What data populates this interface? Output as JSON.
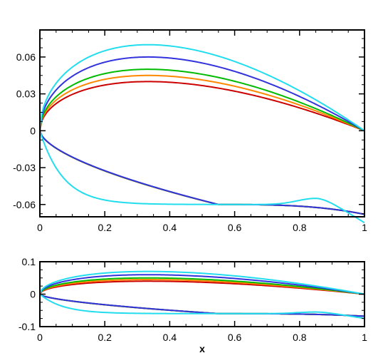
{
  "colors": {
    "red": "#cc0000",
    "orange": "#ff8800",
    "green": "#00bb00",
    "blue": "#3333dd",
    "cyan": "#22ddee",
    "frame": "#000000"
  },
  "chart_data": [
    {
      "type": "line",
      "title": "",
      "xlabel": "",
      "ylabel": "",
      "xlim": [
        0,
        1
      ],
      "ylim": [
        -0.07,
        0.082
      ],
      "x_ticks": [
        "0",
        "0.2",
        "0.4",
        "0.6",
        "0.8",
        "1"
      ],
      "y_ticks": [
        "-0.06",
        "-0.03",
        "0",
        "0.03",
        "0.06"
      ],
      "grid": false,
      "series": [
        {
          "color": "#cc0000",
          "upper_max": 0.04,
          "lower_min": -0.06
        },
        {
          "color": "#ff8800",
          "upper_max": 0.045,
          "lower_min": -0.06
        },
        {
          "color": "#00bb00",
          "upper_max": 0.05,
          "lower_min": -0.06
        },
        {
          "color": "#3333dd",
          "upper_max": 0.06,
          "lower_min": -0.06
        },
        {
          "color": "#22ddee",
          "upper_max": 0.07,
          "lower_min": -0.06,
          "lower_bump_x": 0.85,
          "lower_bump_y": -0.055,
          "lower_end_y": -0.07
        }
      ]
    },
    {
      "type": "line",
      "title": "",
      "xlabel": "x",
      "ylabel": "",
      "xlim": [
        0,
        1
      ],
      "ylim": [
        -0.1,
        0.1
      ],
      "x_ticks": [
        "0",
        "0.2",
        "0.4",
        "0.6",
        "0.8",
        "1"
      ],
      "y_ticks": [
        "-0.1",
        "0",
        "0.1"
      ],
      "grid": false,
      "series": [
        {
          "color": "#cc0000",
          "upper_max": 0.04,
          "lower_min": -0.06
        },
        {
          "color": "#ff8800",
          "upper_max": 0.045,
          "lower_min": -0.06
        },
        {
          "color": "#00bb00",
          "upper_max": 0.05,
          "lower_min": -0.06
        },
        {
          "color": "#3333dd",
          "upper_max": 0.06,
          "lower_min": -0.06
        },
        {
          "color": "#22ddee",
          "upper_max": 0.07,
          "lower_min": -0.06,
          "lower_bump_x": 0.85,
          "lower_bump_y": -0.055,
          "lower_end_y": -0.07
        }
      ]
    }
  ]
}
